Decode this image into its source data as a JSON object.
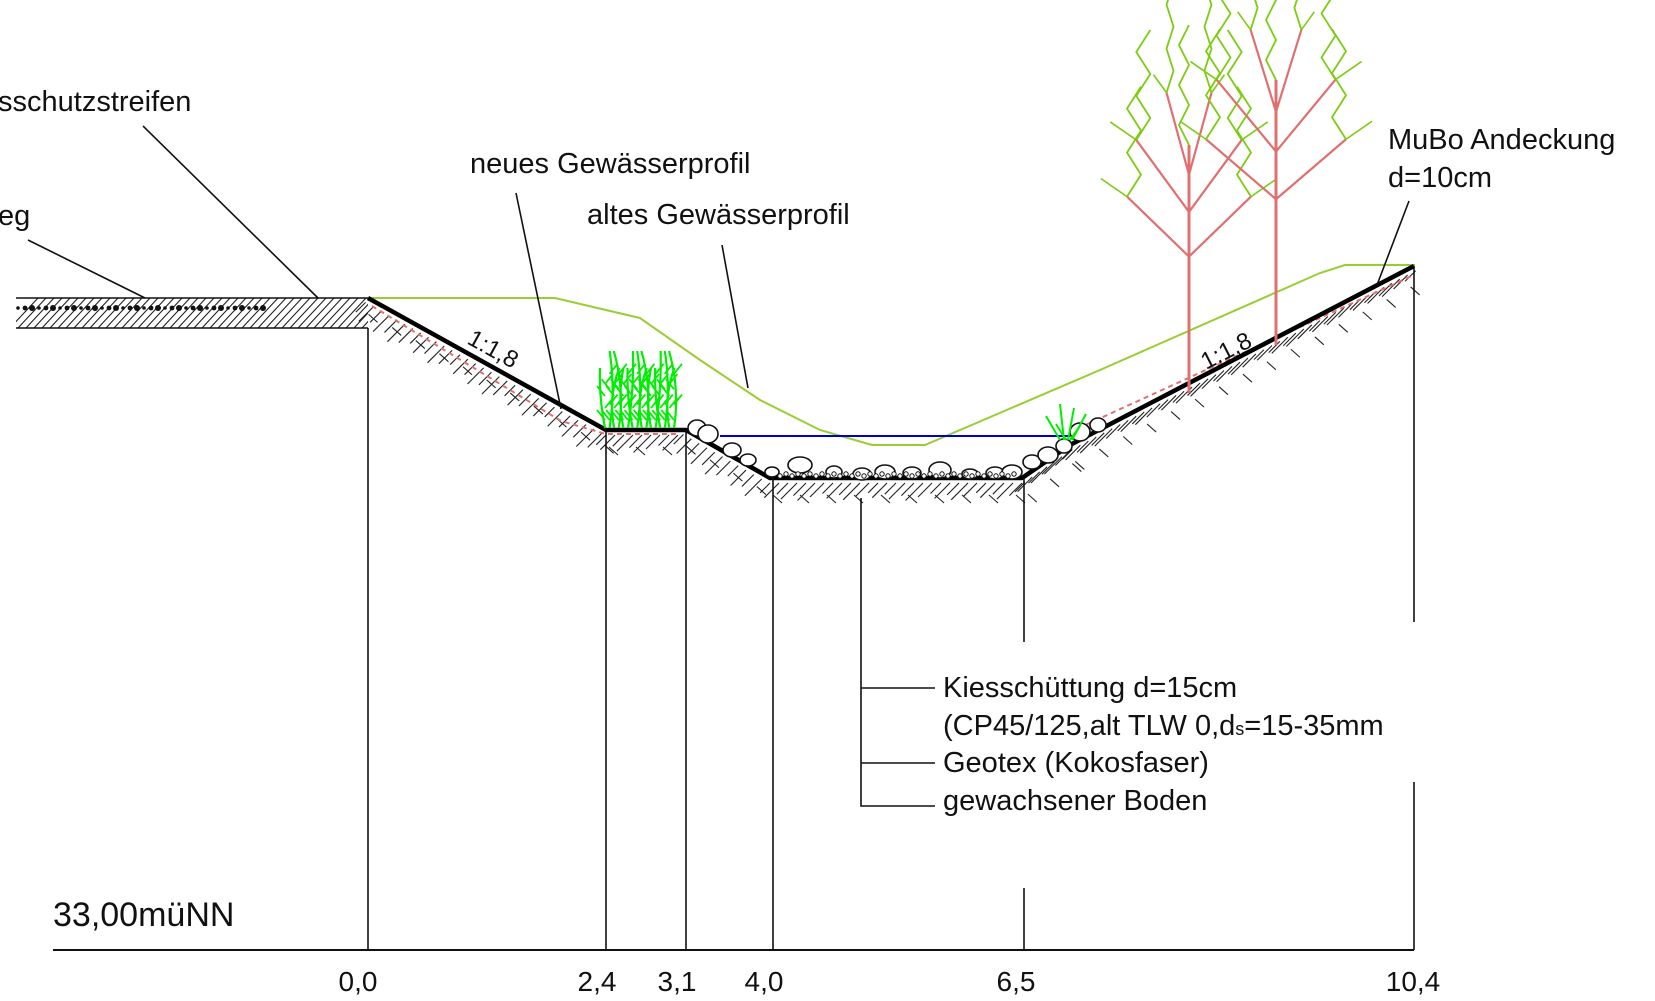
{
  "labels": {
    "uferschutz": "sschutzstreifen",
    "weg": "eg",
    "neues_profil": "neues Gewässerprofil",
    "altes_profil": "altes Gewässerprofil",
    "mubo_line1": "MuBo Andeckung",
    "mubo_line2": "d=10cm",
    "kies_line1": "Kiesschüttung d=15cm",
    "kies_line2_pre": "(CP45/125,alt TLW 0,d",
    "kies_line2_sub": "s",
    "kies_line2_post": "=15-35mm",
    "geotex": "Geotex (Kokosfaser)",
    "boden": "gewachsener Boden",
    "slope_left": "1:1,8",
    "slope_right": "1:1,8",
    "elevation": "33,00müNN"
  },
  "stations": [
    "0,0",
    "2,4",
    "3,1",
    "4,0",
    "6,5",
    "10,4"
  ],
  "colors": {
    "old_profile": "#9acd32",
    "water": "#0000cc",
    "reeds": "#00ee00",
    "tree_branches": "#7ccc10",
    "tree_trunks": "#e07070",
    "mubo_layer": "#e07070"
  },
  "icons": {
    "reeds": "reed-plants-icon",
    "trees": "tree-icon",
    "stones": "boulder-icon",
    "grass": "grass-tuft-icon"
  }
}
